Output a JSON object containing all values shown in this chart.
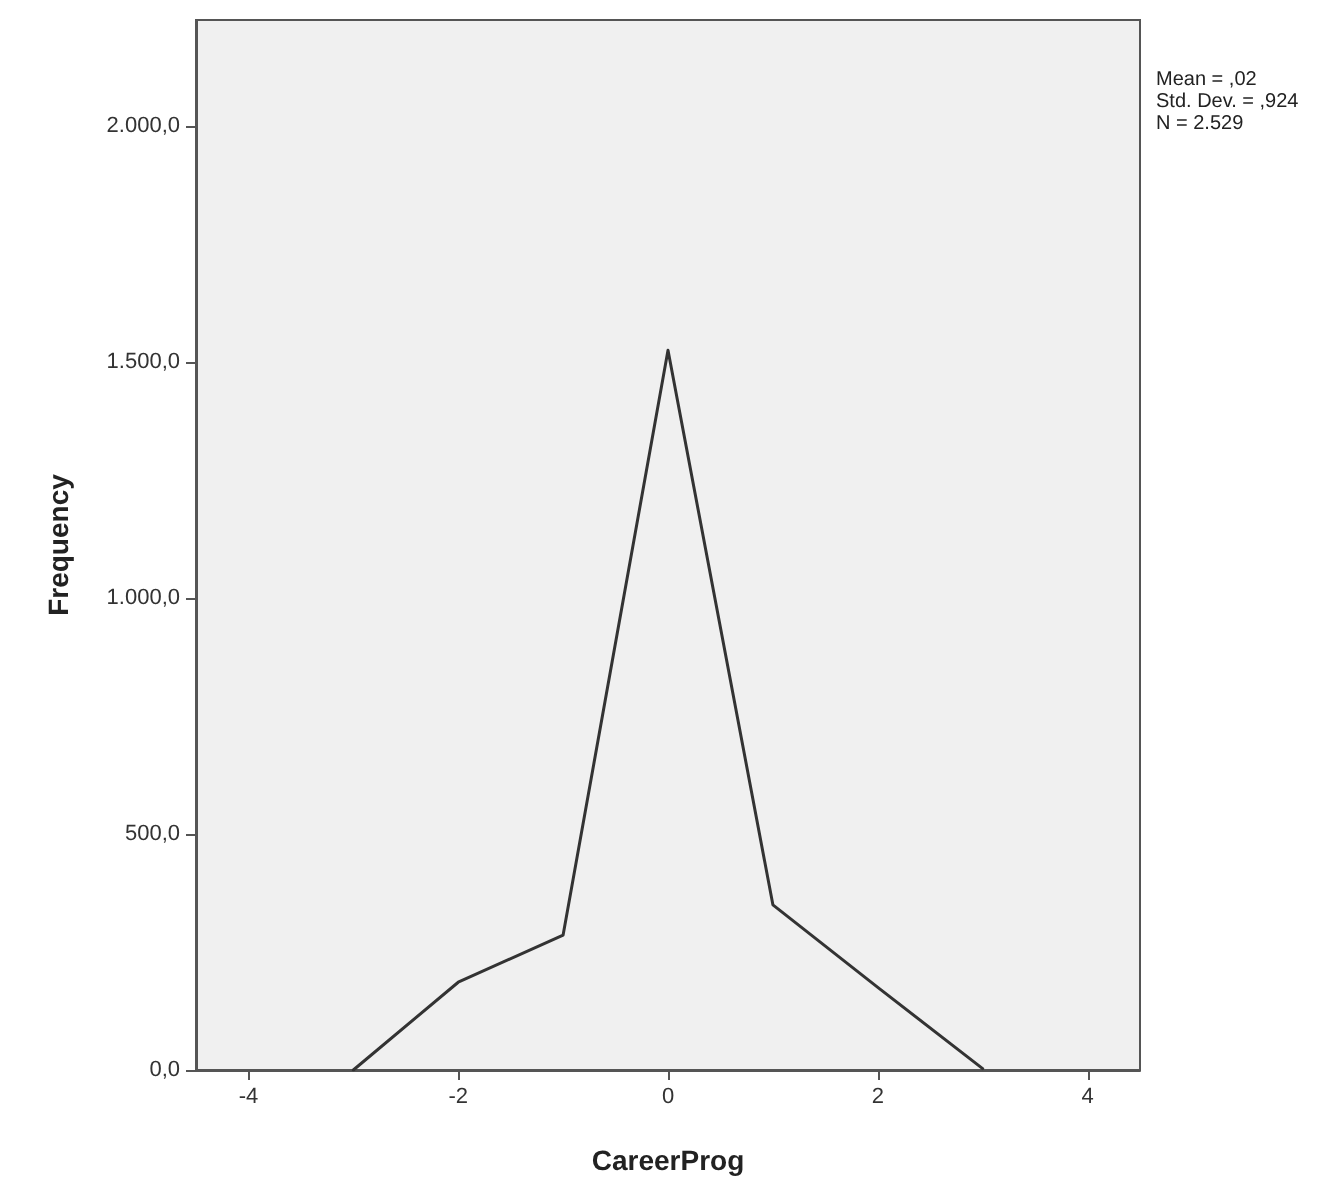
{
  "chart_data": {
    "type": "line",
    "xlabel": "CareerProg",
    "ylabel": "Frequency",
    "x": [
      -3,
      -2,
      -1,
      0,
      1,
      2,
      3
    ],
    "series": [
      {
        "color": "#333333",
        "values": [
          0,
          186,
          286,
          1525,
          350,
          175,
          3
        ]
      }
    ],
    "xlim": [
      -4.5,
      4.5
    ],
    "xticks": [
      -4,
      -2,
      0,
      2,
      4
    ],
    "ylim": [
      0,
      2225
    ],
    "yticks": [
      {
        "value": 0,
        "label": "0,0"
      },
      {
        "value": 500,
        "label": "500,0"
      },
      {
        "value": 1000,
        "label": "1.000,0"
      },
      {
        "value": 1500,
        "label": "1.500,0"
      },
      {
        "value": 2000,
        "label": "2.000,0"
      }
    ],
    "annotations": [
      "Mean = ,02",
      "Std. Dev. = ,924",
      "N = 2.529"
    ],
    "grid": false,
    "marker": "none",
    "line_style": "solid"
  }
}
